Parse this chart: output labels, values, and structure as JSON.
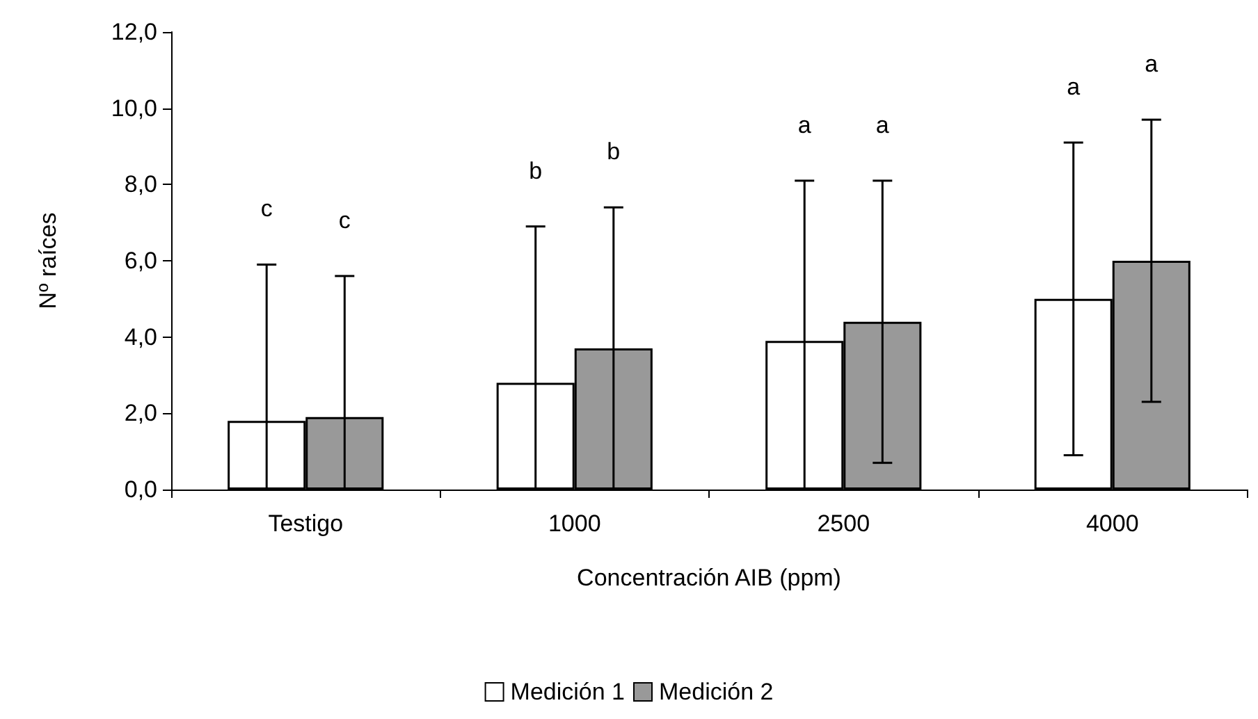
{
  "chart_data": {
    "type": "bar",
    "xlabel": "Concentración AIB (ppm)",
    "ylabel": "Nº raíces",
    "categories": [
      "Testigo",
      "1000",
      "2500",
      "4000"
    ],
    "series": [
      {
        "name": "Medición 1",
        "color": "#ffffff",
        "values": [
          1.8,
          2.8,
          3.9,
          5.0
        ],
        "errors": [
          [
            0,
            5.9
          ],
          [
            0,
            6.9
          ],
          [
            0,
            8.1
          ],
          [
            0.9,
            9.1
          ]
        ]
      },
      {
        "name": "Medición 2",
        "color": "#999999",
        "values": [
          1.9,
          3.7,
          4.4,
          6.0
        ],
        "errors": [
          [
            0,
            5.6
          ],
          [
            0,
            7.4
          ],
          [
            0.7,
            8.1
          ],
          [
            2.3,
            9.7
          ]
        ]
      }
    ],
    "ylim": [
      0,
      12
    ],
    "yticks": [
      {
        "value": 0,
        "label": "0,0"
      },
      {
        "value": 2,
        "label": "2,0"
      },
      {
        "value": 4,
        "label": "4,0"
      },
      {
        "value": 6,
        "label": "6,0"
      },
      {
        "value": 8,
        "label": "8,0"
      },
      {
        "value": 10,
        "label": "10,0"
      },
      {
        "value": 12,
        "label": "12,0"
      }
    ],
    "annotations": [
      "c",
      "c",
      "b",
      "b",
      "a",
      "a",
      "a",
      "a"
    ],
    "grid": false,
    "legend": "bottom"
  }
}
